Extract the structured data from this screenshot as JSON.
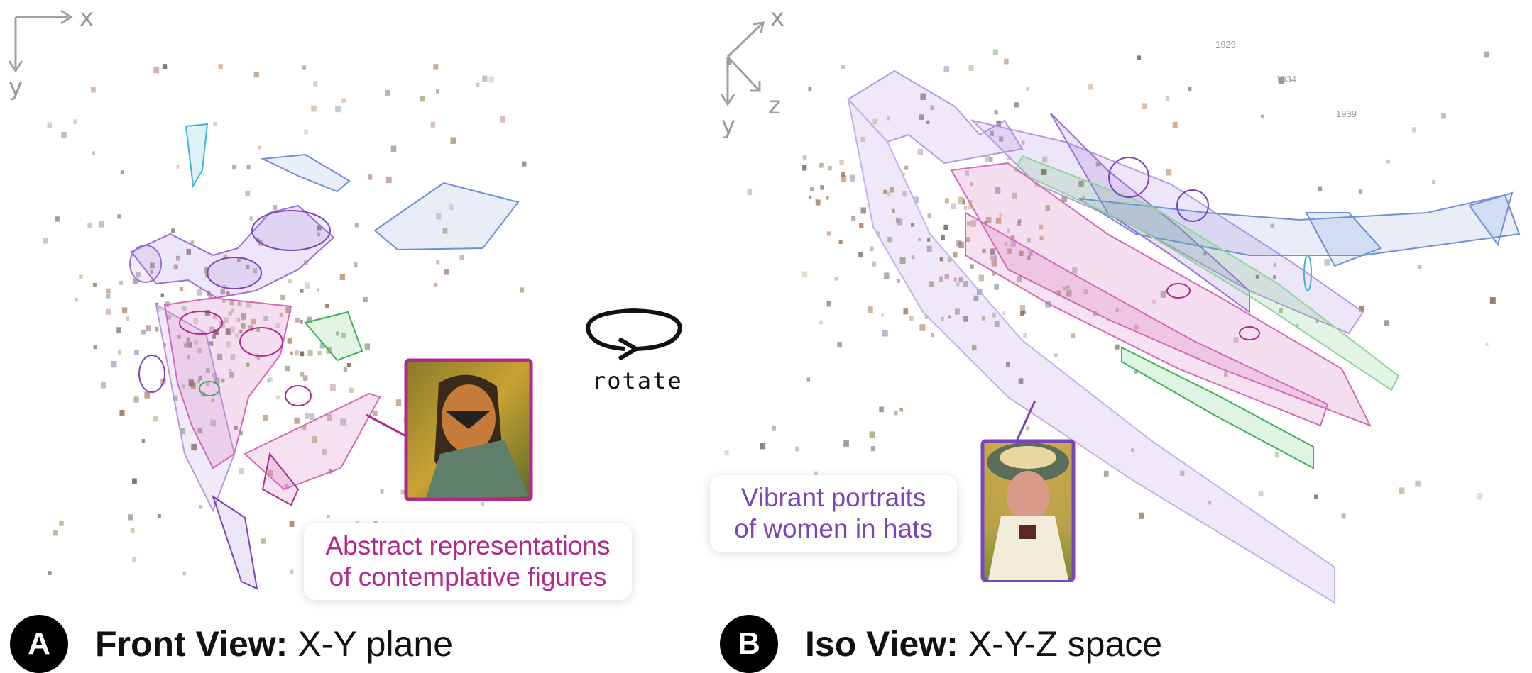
{
  "panels": {
    "front": {
      "axes": {
        "x": "x",
        "y": "y"
      },
      "badge": "A",
      "title_bold": "Front View:",
      "title_rest": "X-Y plane",
      "callout_lines": [
        "Abstract representations",
        "of contemplative figures"
      ],
      "callout_color": "#b02a8c"
    },
    "iso": {
      "axes": {
        "x": "x",
        "y": "y",
        "z": "z"
      },
      "badge": "B",
      "title_bold": "Iso View:",
      "title_rest": "X-Y-Z space",
      "callout_lines": [
        "Vibrant portraits",
        "of women in hats"
      ],
      "callout_color": "#7a45b8",
      "year_labels": [
        "1929",
        "1934",
        "1939"
      ]
    }
  },
  "rotate": {
    "label": "rotate"
  },
  "colors": {
    "purple": "#9a6fd8",
    "magenta": "#d26ab8",
    "blue": "#6f8fd6",
    "green": "#5fc770",
    "cyan": "#43b6cf",
    "thumb_border_magenta": "#b02a8c",
    "thumb_border_purple": "#7a45b8"
  },
  "images": {
    "front_thumbnail": "cubist-portrait-painting",
    "iso_thumbnail": "woman-in-hat-painting"
  }
}
